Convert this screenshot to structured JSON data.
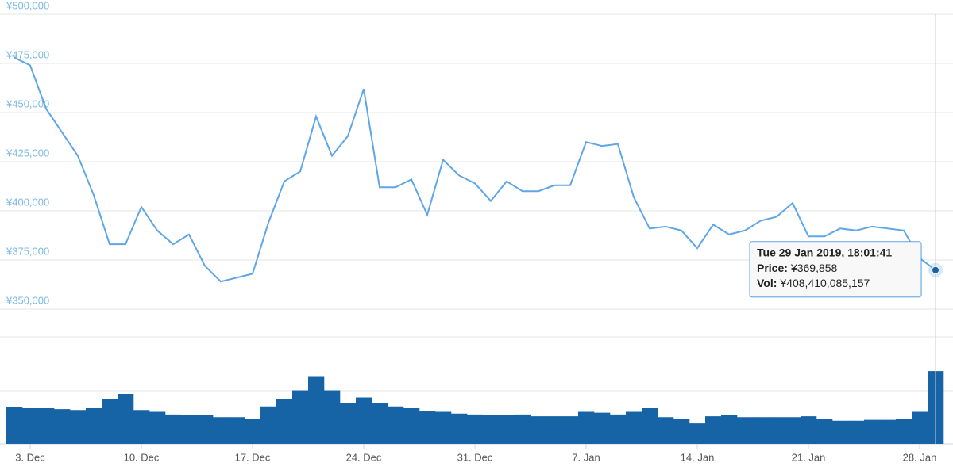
{
  "chart_data": {
    "type": "line",
    "categories": [
      null,
      "3. Dec",
      null,
      null,
      null,
      null,
      null,
      null,
      "10. Dec",
      null,
      null,
      null,
      null,
      null,
      null,
      "17. Dec",
      null,
      null,
      null,
      null,
      null,
      null,
      "24. Dec",
      null,
      null,
      null,
      null,
      null,
      null,
      "31. Dec",
      null,
      null,
      null,
      null,
      null,
      null,
      "7. Jan",
      null,
      null,
      null,
      null,
      null,
      null,
      "14. Jan",
      null,
      null,
      null,
      null,
      null,
      null,
      "21. Jan",
      null,
      null,
      null,
      null,
      null,
      null,
      "28. Jan",
      null
    ],
    "series": [
      {
        "name": "Price",
        "type": "line",
        "color": "#5ea6e8",
        "marker_color": "#1f5f9e",
        "values": [
          478000,
          474000,
          452000,
          440000,
          428000,
          408000,
          383000,
          383000,
          402000,
          390000,
          383000,
          388000,
          372000,
          364000,
          366000,
          368000,
          394000,
          415000,
          420000,
          448000,
          428000,
          438000,
          462000,
          412000,
          412000,
          416000,
          398000,
          426000,
          418000,
          414000,
          405000,
          415000,
          410000,
          410000,
          413000,
          413000,
          435000,
          433000,
          434000,
          407000,
          391000,
          392000,
          390000,
          381000,
          393000,
          388000,
          390000,
          395000,
          397000,
          404000,
          387000,
          387000,
          391000,
          390000,
          392000,
          391000,
          390000,
          376000,
          369858
        ]
      },
      {
        "name": "Vol",
        "type": "bar",
        "axis": "y2",
        "color": "#1664a5",
        "values": [
          205000000000,
          200000000000,
          200000000000,
          195000000000,
          190000000000,
          200000000000,
          250000000000,
          280000000000,
          190000000000,
          180000000000,
          165000000000,
          160000000000,
          160000000000,
          150000000000,
          150000000000,
          140000000000,
          210000000000,
          250000000000,
          300000000000,
          380000000000,
          300000000000,
          230000000000,
          260000000000,
          230000000000,
          210000000000,
          200000000000,
          185000000000,
          180000000000,
          170000000000,
          165000000000,
          160000000000,
          160000000000,
          165000000000,
          155000000000,
          155000000000,
          155000000000,
          180000000000,
          175000000000,
          165000000000,
          180000000000,
          200000000000,
          150000000000,
          140000000000,
          115000000000,
          155000000000,
          160000000000,
          150000000000,
          150000000000,
          150000000000,
          150000000000,
          155000000000,
          140000000000,
          130000000000,
          130000000000,
          135000000000,
          135000000000,
          140000000000,
          180000000000,
          408410085157
        ]
      }
    ],
    "ylim": [
      350000,
      500000
    ],
    "yticks": [
      {
        "value": 350000,
        "label": "¥350,000"
      },
      {
        "value": 375000,
        "label": "¥375,000"
      },
      {
        "value": 400000,
        "label": "¥400,000"
      },
      {
        "value": 425000,
        "label": "¥425,000"
      },
      {
        "value": 450000,
        "label": "¥450,000"
      },
      {
        "value": 475000,
        "label": "¥475,000"
      },
      {
        "value": 500000,
        "label": "¥500,000"
      }
    ],
    "y2lim": [
      0,
      600000000000
    ],
    "grid": true,
    "tooltip": {
      "title": "Tue 29 Jan 2019, 18:01:41",
      "price_label": "Price:",
      "price_value": "¥369,858",
      "vol_label": "Vol:",
      "vol_value": "¥408,410,085,157"
    }
  }
}
